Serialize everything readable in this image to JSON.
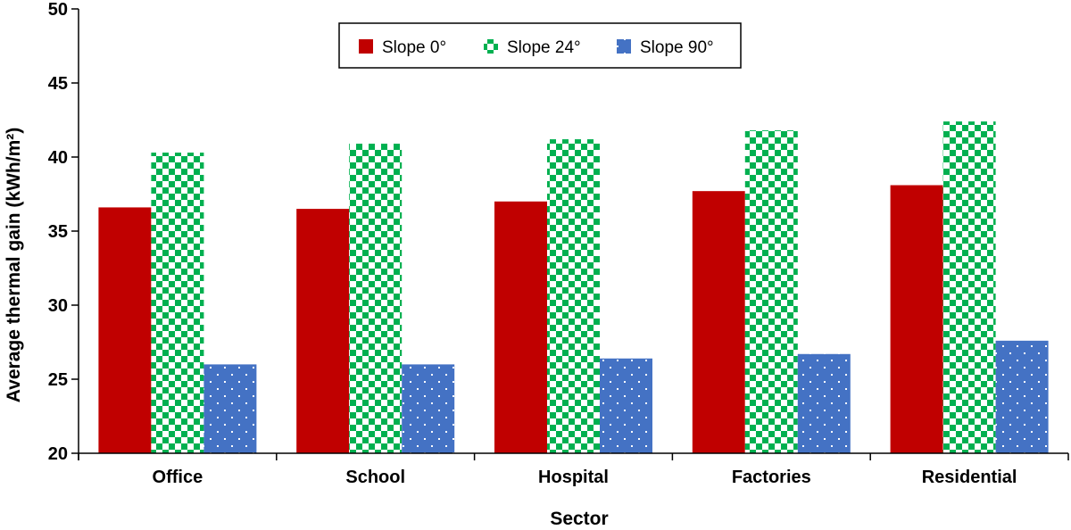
{
  "chart_data": {
    "type": "bar",
    "title": "",
    "xlabel": "Sector",
    "ylabel": "Average thermal gain  (kWh/m²)",
    "ylim": [
      20,
      50
    ],
    "yticks": [
      20,
      25,
      30,
      35,
      40,
      45,
      50
    ],
    "grid": false,
    "legend_position": "top-center",
    "categories": [
      "Office",
      "School",
      "Hospital",
      "Factories",
      "Residential"
    ],
    "series": [
      {
        "name": "Slope 0°",
        "color": "#c00000",
        "pattern": "solid",
        "values": [
          36.6,
          36.5,
          37.0,
          37.7,
          38.1
        ]
      },
      {
        "name": "Slope 24°",
        "color": "#00b050",
        "pattern": "checker",
        "values": [
          40.3,
          40.9,
          41.2,
          41.8,
          42.4
        ]
      },
      {
        "name": "Slope 90°",
        "color": "#4472c4",
        "pattern": "dotted",
        "values": [
          26.0,
          26.0,
          26.4,
          26.7,
          27.6
        ]
      }
    ]
  }
}
